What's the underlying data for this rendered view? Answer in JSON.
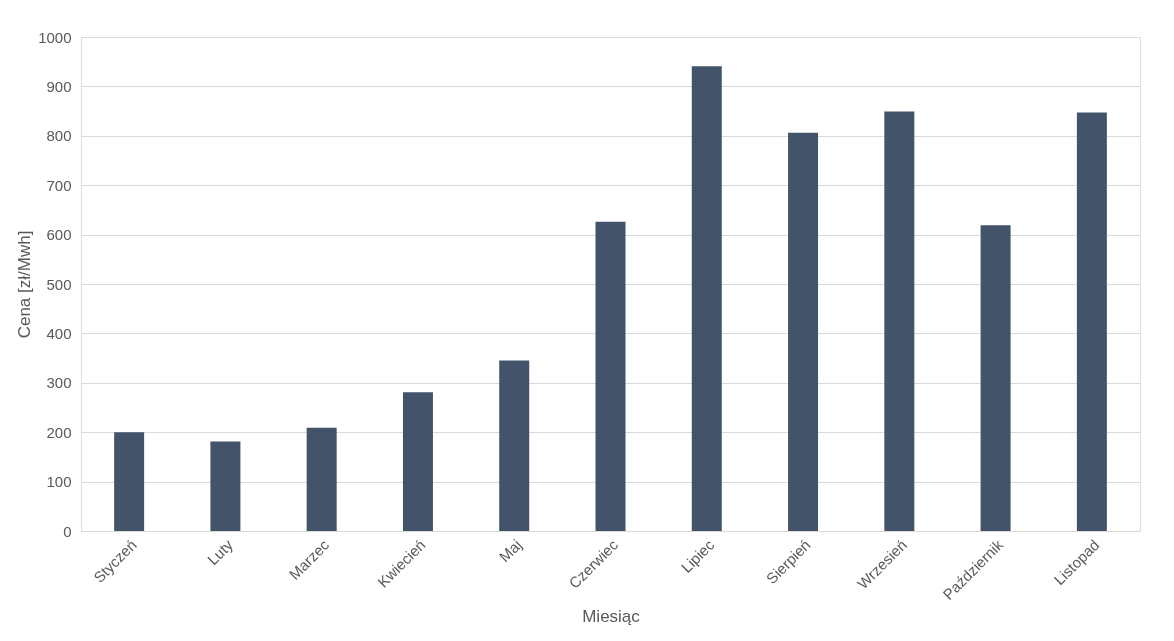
{
  "chart_data": {
    "type": "bar",
    "xlabel": "Miesiąc",
    "ylabel": "Cena [zł/Mwh]",
    "categories": [
      "Styczeń",
      "Luty",
      "Marzec",
      "Kwiecień",
      "Maj",
      "Czerwiec",
      "Lipiec",
      "Sierpień",
      "Wrzesień",
      "Październik",
      "Listopad"
    ],
    "values": [
      200,
      181,
      209,
      281,
      345,
      626,
      941,
      806,
      849,
      619,
      847
    ],
    "color": "#435369",
    "ylim": [
      0,
      1000
    ],
    "yticks": [
      0,
      100,
      200,
      300,
      400,
      500,
      600,
      700,
      800,
      900,
      1000
    ],
    "grid": "y"
  }
}
